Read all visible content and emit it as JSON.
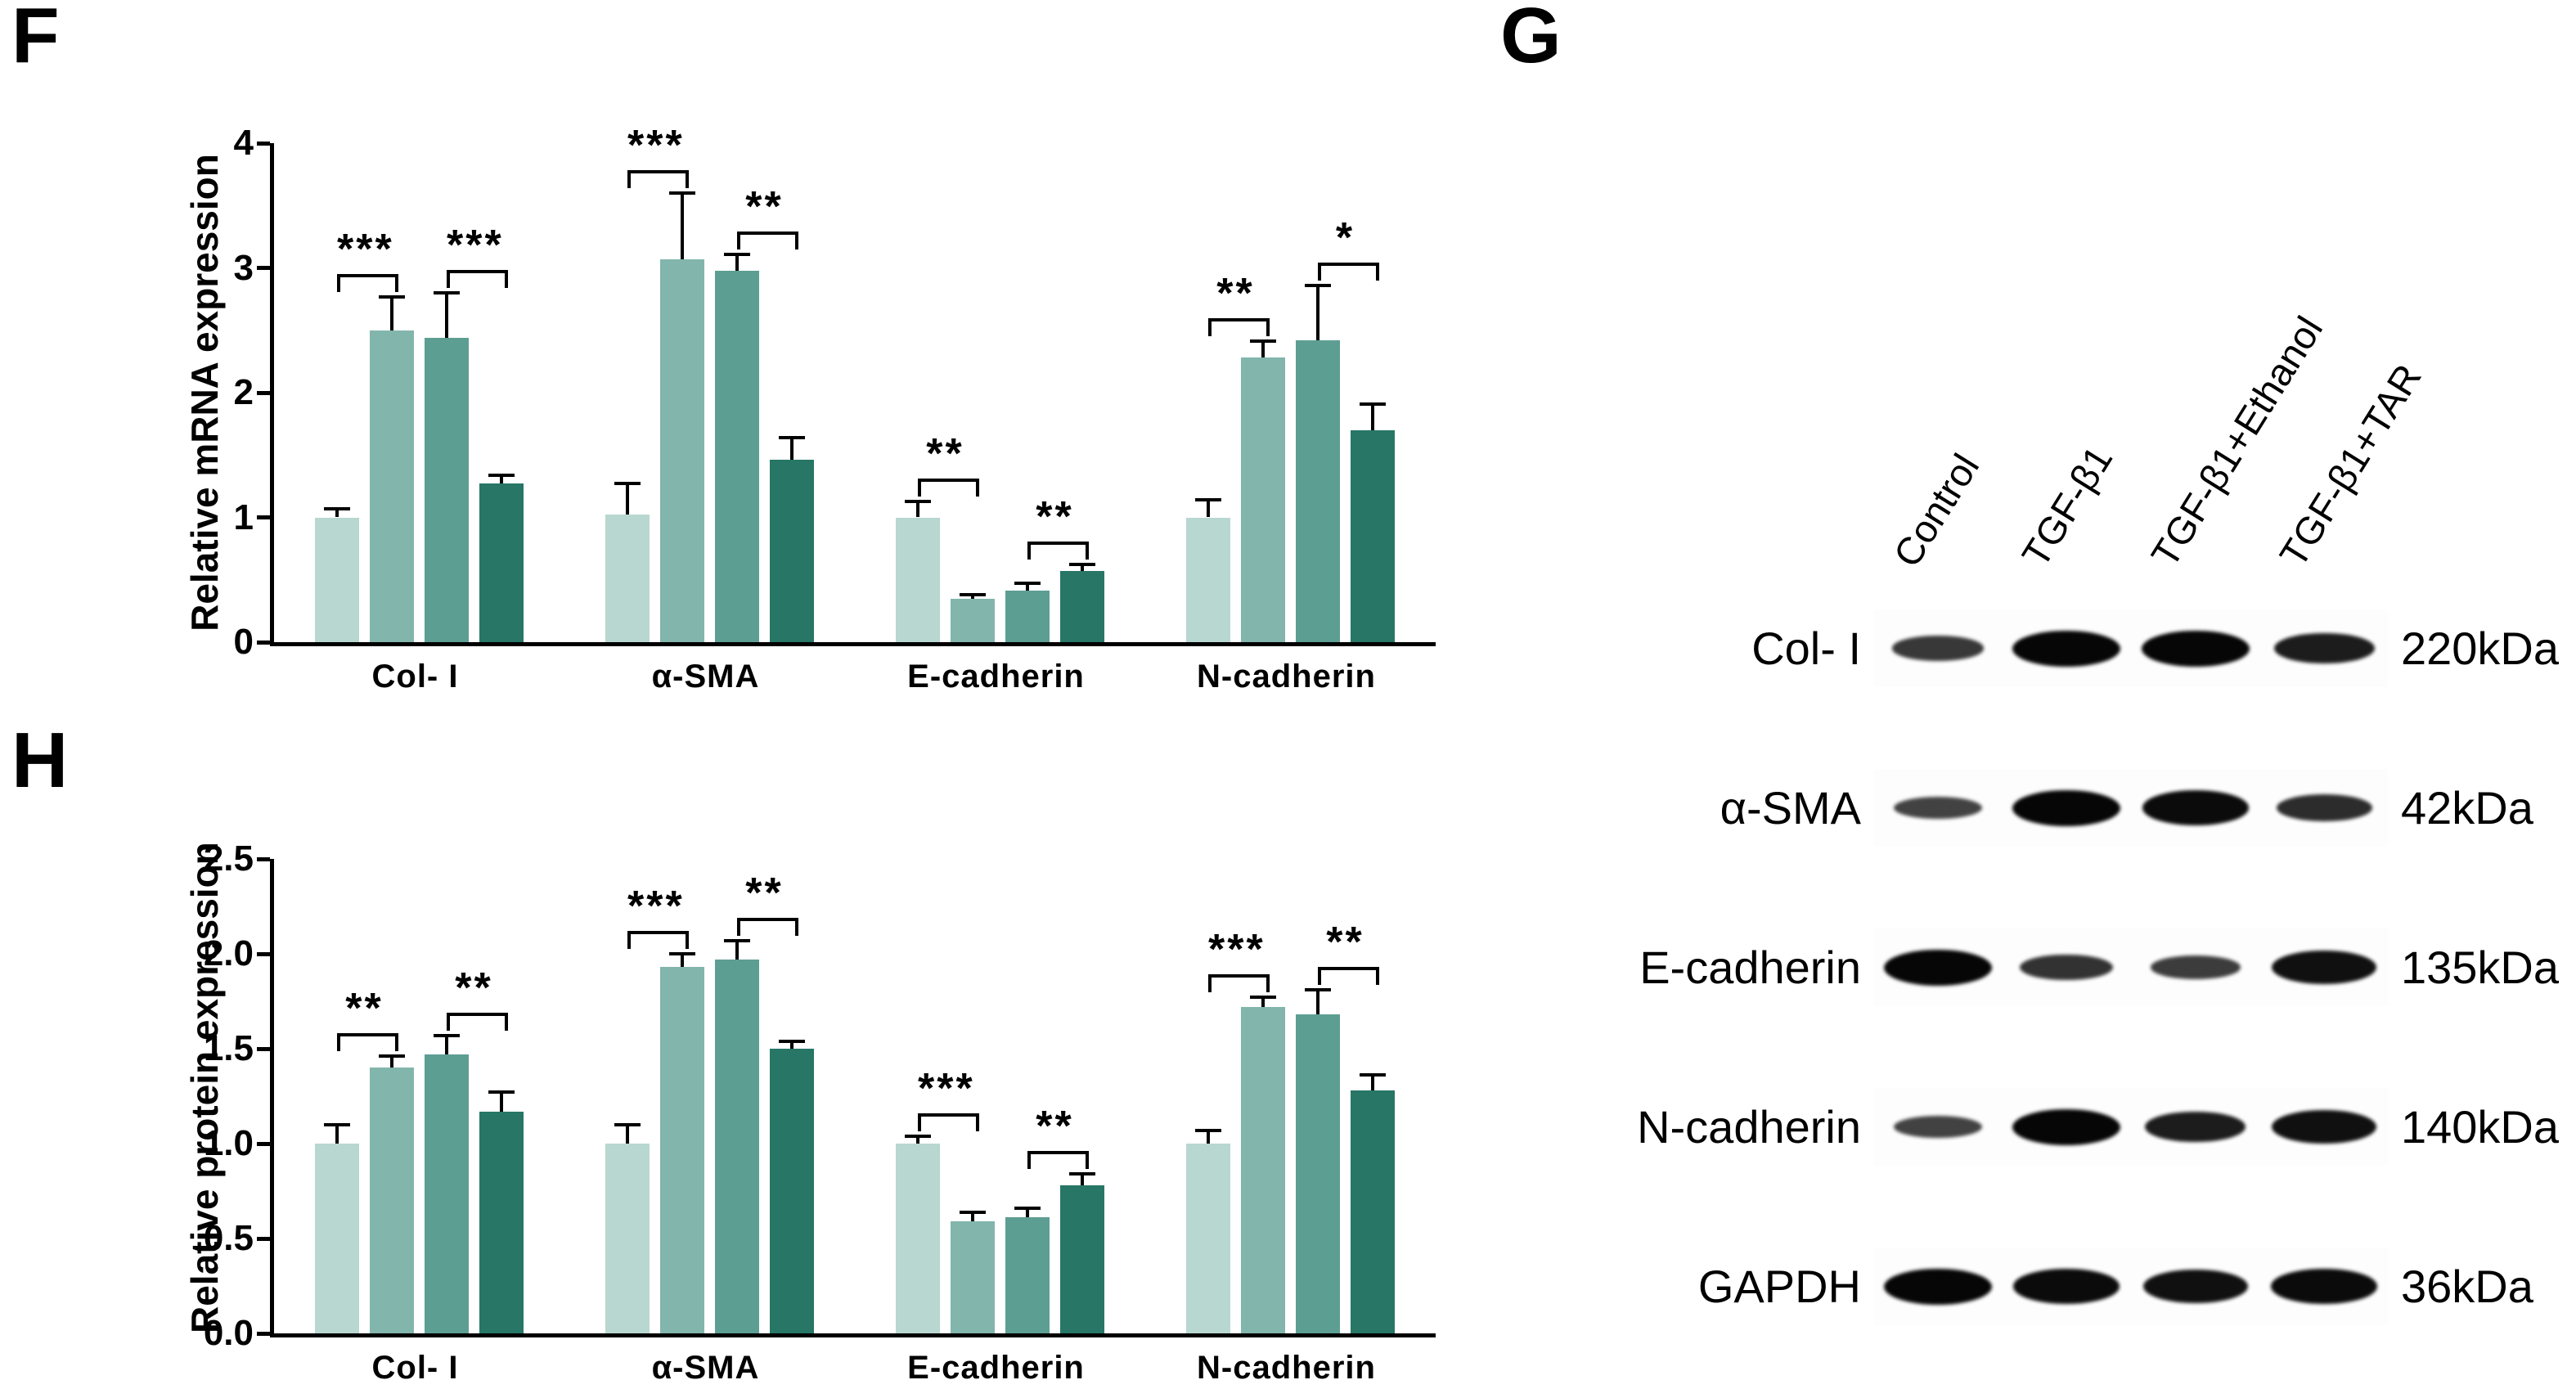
{
  "panels": {
    "f": {
      "label": "F"
    },
    "g": {
      "label": "G"
    },
    "h": {
      "label": "H"
    }
  },
  "chart_data": [
    {
      "dom_id": "chartF",
      "panel": "F",
      "type": "bar",
      "title": "",
      "xlabel": "",
      "ylabel": "Relative mRNA expression",
      "ylim": [
        0,
        4
      ],
      "yticks": [
        {
          "value": 0,
          "label": "0"
        },
        {
          "value": 1,
          "label": "1"
        },
        {
          "value": 2,
          "label": "2"
        },
        {
          "value": 3,
          "label": "3"
        },
        {
          "value": 4,
          "label": "4"
        }
      ],
      "categories": [
        "Col- I",
        "α-SMA",
        "E-cadherin",
        "N-cadherin"
      ],
      "series": [
        {
          "name": "Control",
          "color": "#b7d7d0",
          "values": [
            1.0,
            1.02,
            1.0,
            1.0
          ],
          "errors": [
            0.07,
            0.25,
            0.13,
            0.14
          ]
        },
        {
          "name": "TGF-β1",
          "color": "#82b5ab",
          "values": [
            2.5,
            3.07,
            0.35,
            2.28
          ],
          "errors": [
            0.27,
            0.53,
            0.03,
            0.13
          ]
        },
        {
          "name": "TGF-β1+Ethanol",
          "color": "#5d9e93",
          "values": [
            2.44,
            2.98,
            0.41,
            2.42
          ],
          "errors": [
            0.36,
            0.13,
            0.06,
            0.44
          ]
        },
        {
          "name": "TGF-β1+TAR",
          "color": "#277666",
          "values": [
            1.27,
            1.46,
            0.57,
            1.7
          ],
          "errors": [
            0.07,
            0.18,
            0.05,
            0.21
          ]
        }
      ],
      "significance": [
        {
          "category": 0,
          "pair": [
            0,
            1
          ],
          "label": "***"
        },
        {
          "category": 0,
          "pair": [
            2,
            3
          ],
          "label": "***"
        },
        {
          "category": 1,
          "pair": [
            0,
            1
          ],
          "label": "***"
        },
        {
          "category": 1,
          "pair": [
            2,
            3
          ],
          "label": "**"
        },
        {
          "category": 2,
          "pair": [
            0,
            1
          ],
          "label": "**"
        },
        {
          "category": 2,
          "pair": [
            2,
            3
          ],
          "label": "**"
        },
        {
          "category": 3,
          "pair": [
            0,
            1
          ],
          "label": "**"
        },
        {
          "category": 3,
          "pair": [
            2,
            3
          ],
          "label": "*"
        }
      ]
    },
    {
      "dom_id": "chartH",
      "panel": "H",
      "type": "bar",
      "title": "",
      "xlabel": "",
      "ylabel": "Relative protein expression",
      "ylim": [
        0,
        2.5
      ],
      "yticks": [
        {
          "value": 0,
          "label": "0.0"
        },
        {
          "value": 0.5,
          "label": "0.5"
        },
        {
          "value": 1,
          "label": "1.0"
        },
        {
          "value": 1.5,
          "label": "1.5"
        },
        {
          "value": 2,
          "label": "2.0"
        },
        {
          "value": 2.5,
          "label": "2.5"
        }
      ],
      "categories": [
        "Col- I",
        "α-SMA",
        "E-cadherin",
        "N-cadherin"
      ],
      "series": [
        {
          "name": "Control",
          "color": "#b7d7d0",
          "values": [
            1.0,
            1.0,
            1.0,
            1.0
          ],
          "errors": [
            0.1,
            0.1,
            0.04,
            0.07
          ]
        },
        {
          "name": "TGF-β1",
          "color": "#82b5ab",
          "values": [
            1.4,
            1.93,
            0.59,
            1.72
          ],
          "errors": [
            0.06,
            0.07,
            0.05,
            0.05
          ]
        },
        {
          "name": "TGF-β1+Ethanol",
          "color": "#5d9e93",
          "values": [
            1.47,
            1.97,
            0.61,
            1.68
          ],
          "errors": [
            0.1,
            0.1,
            0.05,
            0.13
          ]
        },
        {
          "name": "TGF-β1+TAR",
          "color": "#277666",
          "values": [
            1.17,
            1.5,
            0.78,
            1.28
          ],
          "errors": [
            0.1,
            0.04,
            0.06,
            0.08
          ]
        }
      ],
      "significance": [
        {
          "category": 0,
          "pair": [
            0,
            1
          ],
          "label": "**"
        },
        {
          "category": 0,
          "pair": [
            2,
            3
          ],
          "label": "**"
        },
        {
          "category": 1,
          "pair": [
            0,
            1
          ],
          "label": "***"
        },
        {
          "category": 1,
          "pair": [
            2,
            3
          ],
          "label": "**"
        },
        {
          "category": 2,
          "pair": [
            0,
            1
          ],
          "label": "***"
        },
        {
          "category": 2,
          "pair": [
            2,
            3
          ],
          "label": "**"
        },
        {
          "category": 3,
          "pair": [
            0,
            1
          ],
          "label": "***"
        },
        {
          "category": 3,
          "pair": [
            2,
            3
          ],
          "label": "**"
        }
      ]
    }
  ],
  "blot": {
    "panel_label": "G",
    "lanes": [
      "Control",
      "TGF-β1",
      "TGF-β1+Ethanol",
      "TGF-β1+TAR"
    ],
    "rows": [
      {
        "protein": "Col- I",
        "weight": "220kDa",
        "intensities": [
          0.55,
          1.0,
          1.0,
          0.8
        ]
      },
      {
        "protein": "α-SMA",
        "weight": "42kDa",
        "intensities": [
          0.45,
          1.0,
          0.95,
          0.65
        ]
      },
      {
        "protein": "E-cadherin",
        "weight": "135kDa",
        "intensities": [
          1.0,
          0.6,
          0.5,
          0.9
        ]
      },
      {
        "protein": "N-cadherin",
        "weight": "140kDa",
        "intensities": [
          0.45,
          1.0,
          0.8,
          0.9
        ]
      },
      {
        "protein": "GAPDH",
        "weight": "36kDa",
        "intensities": [
          1.0,
          0.95,
          0.9,
          0.95
        ]
      }
    ]
  }
}
